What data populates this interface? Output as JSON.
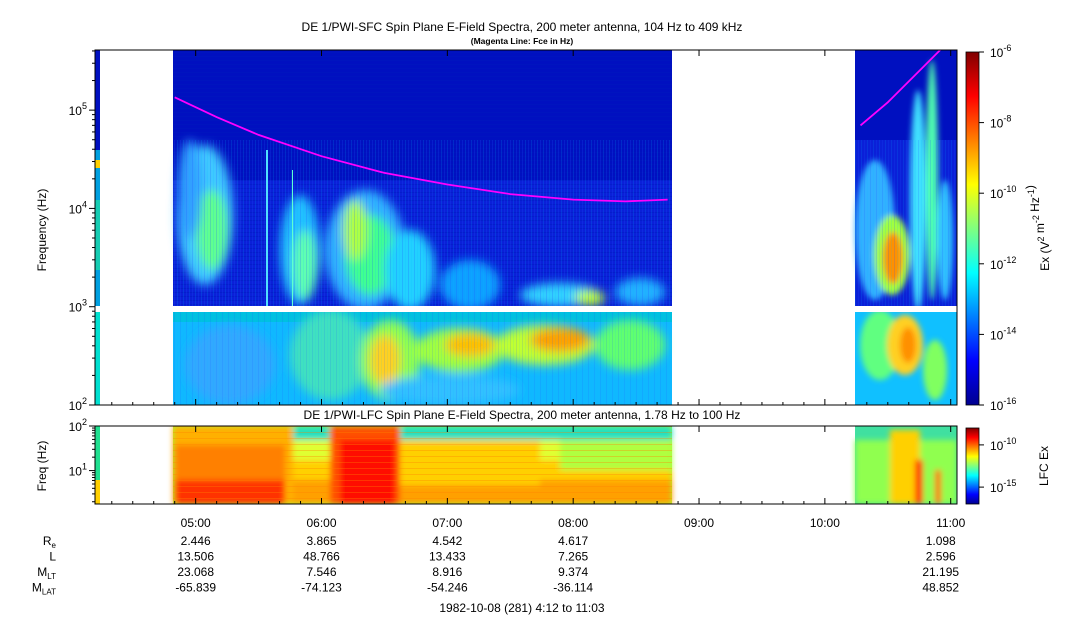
{
  "chart_data": [
    {
      "type": "heatmap",
      "title": "DE 1/PWI-SFC  Spin Plane E-Field Spectra, 200 meter antenna, 104 Hz to 409 kHz",
      "subtitle": "(Magenta Line: Fce in Hz)",
      "ylabel": "Frequency (Hz)",
      "yscale": "log",
      "ylim": [
        100,
        409000
      ],
      "ytick_labels": [
        {
          "base": "10",
          "exp": "2",
          "value": 100
        },
        {
          "base": "10",
          "exp": "3",
          "value": 1000
        },
        {
          "base": "10",
          "exp": "4",
          "value": 10000
        },
        {
          "base": "10",
          "exp": "5",
          "value": 100000
        }
      ],
      "data_gaps_ut": [
        [
          "04:12",
          "04:48"
        ],
        [
          "08:47",
          "10:17"
        ]
      ],
      "fce_line": {
        "name": "Fce",
        "color": "#ff00ff",
        "segments": [
          [
            {
              "t": "04:50",
              "f": 135000
            },
            {
              "t": "05:10",
              "f": 85000
            },
            {
              "t": "05:30",
              "f": 56000
            },
            {
              "t": "06:00",
              "f": 34000
            },
            {
              "t": "06:30",
              "f": 23000
            },
            {
              "t": "07:00",
              "f": 17500
            },
            {
              "t": "07:30",
              "f": 14000
            },
            {
              "t": "08:00",
              "f": 12300
            },
            {
              "t": "08:25",
              "f": 11800
            },
            {
              "t": "08:45",
              "f": 12300
            }
          ],
          [
            {
              "t": "10:17",
              "f": 70000
            },
            {
              "t": "10:30",
              "f": 120000
            },
            {
              "t": "10:45",
              "f": 250000
            },
            {
              "t": "10:55",
              "f": 409000
            }
          ]
        ]
      },
      "colorbar": {
        "label_base": "Ex (V",
        "label_parts": [
          {
            "text": "Ex (V",
            "sup": ""
          },
          {
            "text": "",
            "sup": "2"
          },
          {
            "text": " m",
            "sup": ""
          },
          {
            "text": "",
            "sup": "-2"
          },
          {
            "text": " Hz",
            "sup": ""
          },
          {
            "text": "",
            "sup": "-1"
          },
          {
            "text": ")",
            "sup": ""
          }
        ],
        "scale": "log",
        "range": [
          1e-16,
          1e-06
        ],
        "tick_labels": [
          {
            "base": "10",
            "exp": "-6",
            "value": -6
          },
          {
            "base": "10",
            "exp": "-8",
            "value": -8
          },
          {
            "base": "10",
            "exp": "-10",
            "value": -10
          },
          {
            "base": "10",
            "exp": "-12",
            "value": -12
          },
          {
            "base": "10",
            "exp": "-14",
            "value": -14
          },
          {
            "base": "10",
            "exp": "-16",
            "value": -16
          }
        ]
      }
    },
    {
      "type": "heatmap",
      "title": "DE 1/PWI-LFC  Spin Plane E-Field Spectra, 200 meter antenna, 1.78 Hz to 100 Hz",
      "ylabel": "Freq (Hz)",
      "yscale": "log",
      "ylim": [
        1.78,
        100
      ],
      "ytick_labels": [
        {
          "base": "10",
          "exp": "1",
          "value": 10
        },
        {
          "base": "10",
          "exp": "2",
          "value": 100
        }
      ],
      "data_gaps_ut": [
        [
          "04:12",
          "04:48"
        ],
        [
          "08:47",
          "10:17"
        ]
      ],
      "colorbar": {
        "label": "LFC Ex",
        "scale": "log",
        "range": [
          1e-17,
          1e-08
        ],
        "tick_labels": [
          {
            "base": "10",
            "exp": "-10",
            "value": -10
          },
          {
            "base": "10",
            "exp": "-15",
            "value": -15
          }
        ]
      }
    }
  ],
  "time_axis": {
    "start": "04:12",
    "end": "11:03",
    "ticks": [
      {
        "label": "05:00",
        "t": "05:00"
      },
      {
        "label": "06:00",
        "t": "06:00"
      },
      {
        "label": "07:00",
        "t": "07:00"
      },
      {
        "label": "08:00",
        "t": "08:00"
      },
      {
        "label": "09:00",
        "t": "09:00"
      },
      {
        "label": "10:00",
        "t": "10:00"
      },
      {
        "label": "11:00",
        "t": "11:00"
      }
    ]
  },
  "ephemeris": {
    "rows": [
      {
        "label": "R",
        "sub": "e",
        "values": [
          "2.446",
          "3.865",
          "4.542",
          "4.617",
          "",
          "",
          "1.098"
        ]
      },
      {
        "label": "L",
        "sub": "",
        "values": [
          "13.506",
          "48.766",
          "13.433",
          "7.265",
          "",
          "",
          "2.596"
        ]
      },
      {
        "label": "M",
        "sub": "LT",
        "values": [
          "23.068",
          "7.546",
          "8.916",
          "9.374",
          "",
          "",
          "21.195"
        ]
      },
      {
        "label": "M",
        "sub": "LAT",
        "values": [
          "-65.839",
          "-74.123",
          "-54.246",
          "-36.114",
          "",
          "",
          "48.852"
        ]
      }
    ]
  },
  "footer": "1982-10-08 (281) 4:12 to 11:03"
}
